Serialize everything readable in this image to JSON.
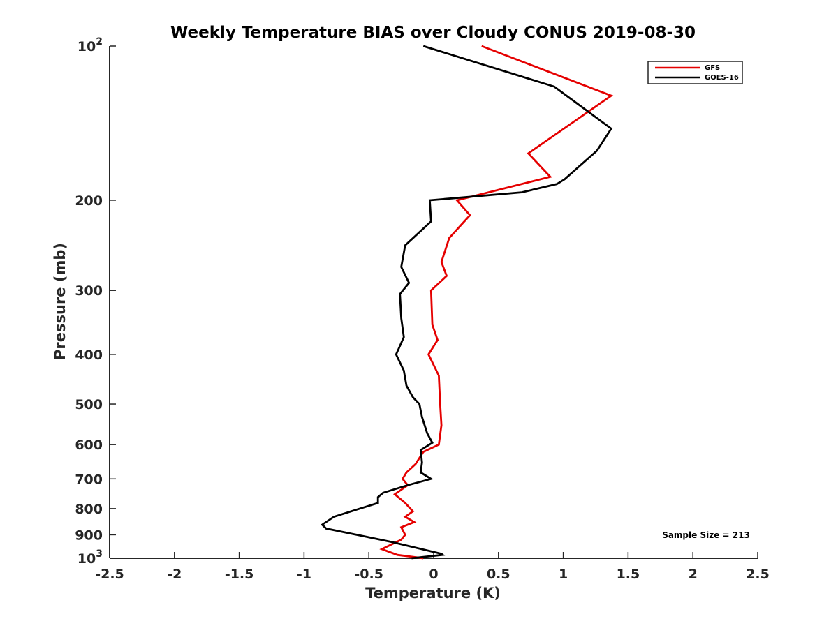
{
  "chart_data": {
    "type": "line",
    "title": "Weekly Temperature BIAS over Cloudy CONUS 2019-08-30",
    "xlabel": "Temperature (K)",
    "ylabel": "Pressure (mb)",
    "xlim": [
      -2.5,
      2.5
    ],
    "ylim": [
      100,
      1000
    ],
    "y_scale": "log",
    "y_direction": "reversed",
    "x_ticks": [
      "-2.5",
      "-2",
      "-1.5",
      "-1",
      "-0.5",
      "0",
      "0.5",
      "1",
      "1.5",
      "2",
      "2.5"
    ],
    "y_ticks": [
      {
        "value": 100,
        "base": "10",
        "exp": "2"
      },
      {
        "value": 200,
        "label": "200"
      },
      {
        "value": 300,
        "label": "300"
      },
      {
        "value": 400,
        "label": "400"
      },
      {
        "value": 500,
        "label": "500"
      },
      {
        "value": 600,
        "label": "600"
      },
      {
        "value": 700,
        "label": "700"
      },
      {
        "value": 800,
        "label": "800"
      },
      {
        "value": 900,
        "label": "900"
      },
      {
        "value": 1000,
        "base": "10",
        "exp": "3"
      }
    ],
    "legend_position": "top-right",
    "annotation": "Sample Size = 213",
    "series": [
      {
        "name": "GFS",
        "color": "#e50000",
        "points": [
          [
            0.37,
            100
          ],
          [
            1.37,
            125
          ],
          [
            0.73,
            162
          ],
          [
            0.9,
            180
          ],
          [
            0.18,
            200
          ],
          [
            0.28,
            214
          ],
          [
            0.12,
            237
          ],
          [
            0.06,
            264
          ],
          [
            0.1,
            281
          ],
          [
            -0.02,
            300
          ],
          [
            -0.01,
            350
          ],
          [
            0.03,
            375
          ],
          [
            -0.04,
            400
          ],
          [
            0.04,
            440
          ],
          [
            0.05,
            500
          ],
          [
            0.06,
            550
          ],
          [
            0.04,
            600
          ],
          [
            -0.08,
            620
          ],
          [
            -0.14,
            655
          ],
          [
            -0.21,
            680
          ],
          [
            -0.24,
            700
          ],
          [
            -0.2,
            720
          ],
          [
            -0.3,
            750
          ],
          [
            -0.22,
            780
          ],
          [
            -0.16,
            810
          ],
          [
            -0.22,
            830
          ],
          [
            -0.15,
            850
          ],
          [
            -0.25,
            870
          ],
          [
            -0.22,
            900
          ],
          [
            -0.25,
            920
          ],
          [
            -0.4,
            960
          ],
          [
            -0.28,
            985
          ],
          [
            -0.08,
            1000
          ]
        ]
      },
      {
        "name": "GOES-16",
        "color": "#000000",
        "points": [
          [
            -0.08,
            100
          ],
          [
            0.93,
            120
          ],
          [
            1.37,
            145
          ],
          [
            1.26,
            160
          ],
          [
            1.01,
            182
          ],
          [
            0.95,
            186
          ],
          [
            0.68,
            193
          ],
          [
            -0.03,
            200
          ],
          [
            -0.02,
            220
          ],
          [
            -0.22,
            245
          ],
          [
            -0.25,
            270
          ],
          [
            -0.19,
            290
          ],
          [
            -0.26,
            305
          ],
          [
            -0.25,
            340
          ],
          [
            -0.23,
            370
          ],
          [
            -0.27,
            390
          ],
          [
            -0.29,
            400
          ],
          [
            -0.23,
            430
          ],
          [
            -0.21,
            460
          ],
          [
            -0.16,
            485
          ],
          [
            -0.11,
            500
          ],
          [
            -0.09,
            530
          ],
          [
            -0.05,
            570
          ],
          [
            -0.01,
            595
          ],
          [
            -0.1,
            615
          ],
          [
            -0.09,
            650
          ],
          [
            -0.1,
            680
          ],
          [
            -0.02,
            700
          ],
          [
            -0.2,
            720
          ],
          [
            -0.39,
            745
          ],
          [
            -0.43,
            760
          ],
          [
            -0.43,
            780
          ],
          [
            -0.77,
            830
          ],
          [
            -0.86,
            860
          ],
          [
            -0.83,
            875
          ],
          [
            -0.32,
            930
          ],
          [
            0.06,
            980
          ],
          [
            0.07,
            985
          ],
          [
            -0.14,
            998
          ],
          [
            -0.17,
            1000
          ]
        ]
      }
    ]
  }
}
